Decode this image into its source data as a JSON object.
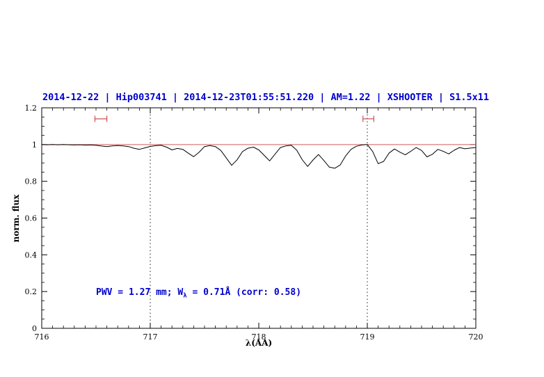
{
  "colors": {
    "accent_blue": "#0000cd",
    "reference_red": "#cd5c5c",
    "marker_red": "#cd5050",
    "spectrum_black": "#000000",
    "axis_black": "#000000"
  },
  "annotation": {
    "pre": "PWV = 1.27 mm; W",
    "sub": "λ",
    "post": " = 0.71Å (corr: 0.58)"
  },
  "chart_data": {
    "type": "line",
    "title": "2014-12-22 | Hip003741 | 2014-12-23T01:55:51.220 | AM=1.22 | XSHOOTER | S1.5x11",
    "xlabel": "λ(AA)",
    "ylabel": "norm. flux",
    "xlim": [
      716,
      720
    ],
    "ylim": [
      0,
      1.2
    ],
    "xticks": [
      716,
      717,
      718,
      719,
      720
    ],
    "xtick_labels": [
      "716",
      "717",
      "718",
      "719",
      "720"
    ],
    "x_minor_step": 0.1,
    "yticks": [
      0,
      0.2,
      0.4,
      0.6,
      0.8,
      1,
      1.2
    ],
    "ytick_labels": [
      "0",
      "0.2",
      "0.4",
      "0.6",
      "0.8",
      "1",
      "1.2"
    ],
    "y_minor_step": 0.05,
    "grid": false,
    "legend": "none",
    "dotted_vlines": [
      717,
      719
    ],
    "reference_hline": 1.0,
    "band_markers": [
      {
        "x_min": 716.49,
        "x_max": 716.6,
        "y": 1.14
      },
      {
        "x_min": 718.96,
        "x_max": 719.06,
        "y": 1.14
      }
    ],
    "series": [
      {
        "name": "spectrum",
        "x": [
          716,
          716.05,
          716.1,
          716.15,
          716.2,
          716.25,
          716.3,
          716.35,
          716.4,
          716.45,
          716.5,
          716.55,
          716.6,
          716.65,
          716.7,
          716.75,
          716.8,
          716.85,
          716.9,
          716.95,
          717,
          717.05,
          717.1,
          717.15,
          717.2,
          717.25,
          717.3,
          717.35,
          717.4,
          717.45,
          717.5,
          717.55,
          717.6,
          717.65,
          717.7,
          717.75,
          717.8,
          717.85,
          717.9,
          717.95,
          718,
          718.05,
          718.1,
          718.15,
          718.2,
          718.25,
          718.3,
          718.35,
          718.4,
          718.45,
          718.5,
          718.55,
          718.6,
          718.65,
          718.7,
          718.75,
          718.8,
          718.85,
          718.9,
          718.95,
          719,
          719.05,
          719.1,
          719.15,
          719.2,
          719.25,
          719.3,
          719.35,
          719.4,
          719.45,
          719.5,
          719.55,
          719.6,
          719.65,
          719.7,
          719.75,
          719.8,
          719.85,
          719.9,
          719.95,
          720
        ],
        "y": [
          1.0,
          0.999,
          1.0,
          0.999,
          1.0,
          0.999,
          0.998,
          0.999,
          0.997,
          0.998,
          0.996,
          0.992,
          0.989,
          0.993,
          0.995,
          0.993,
          0.989,
          0.98,
          0.974,
          0.982,
          0.99,
          0.994,
          0.996,
          0.986,
          0.971,
          0.979,
          0.974,
          0.953,
          0.934,
          0.958,
          0.989,
          0.995,
          0.989,
          0.968,
          0.928,
          0.887,
          0.917,
          0.962,
          0.98,
          0.986,
          0.971,
          0.941,
          0.911,
          0.948,
          0.984,
          0.993,
          0.996,
          0.969,
          0.918,
          0.881,
          0.916,
          0.946,
          0.913,
          0.877,
          0.871,
          0.889,
          0.938,
          0.974,
          0.991,
          0.998,
          1.0,
          0.962,
          0.896,
          0.908,
          0.953,
          0.976,
          0.959,
          0.944,
          0.963,
          0.984,
          0.968,
          0.933,
          0.947,
          0.974,
          0.963,
          0.949,
          0.969,
          0.984,
          0.977,
          0.981,
          0.984
        ]
      }
    ]
  }
}
